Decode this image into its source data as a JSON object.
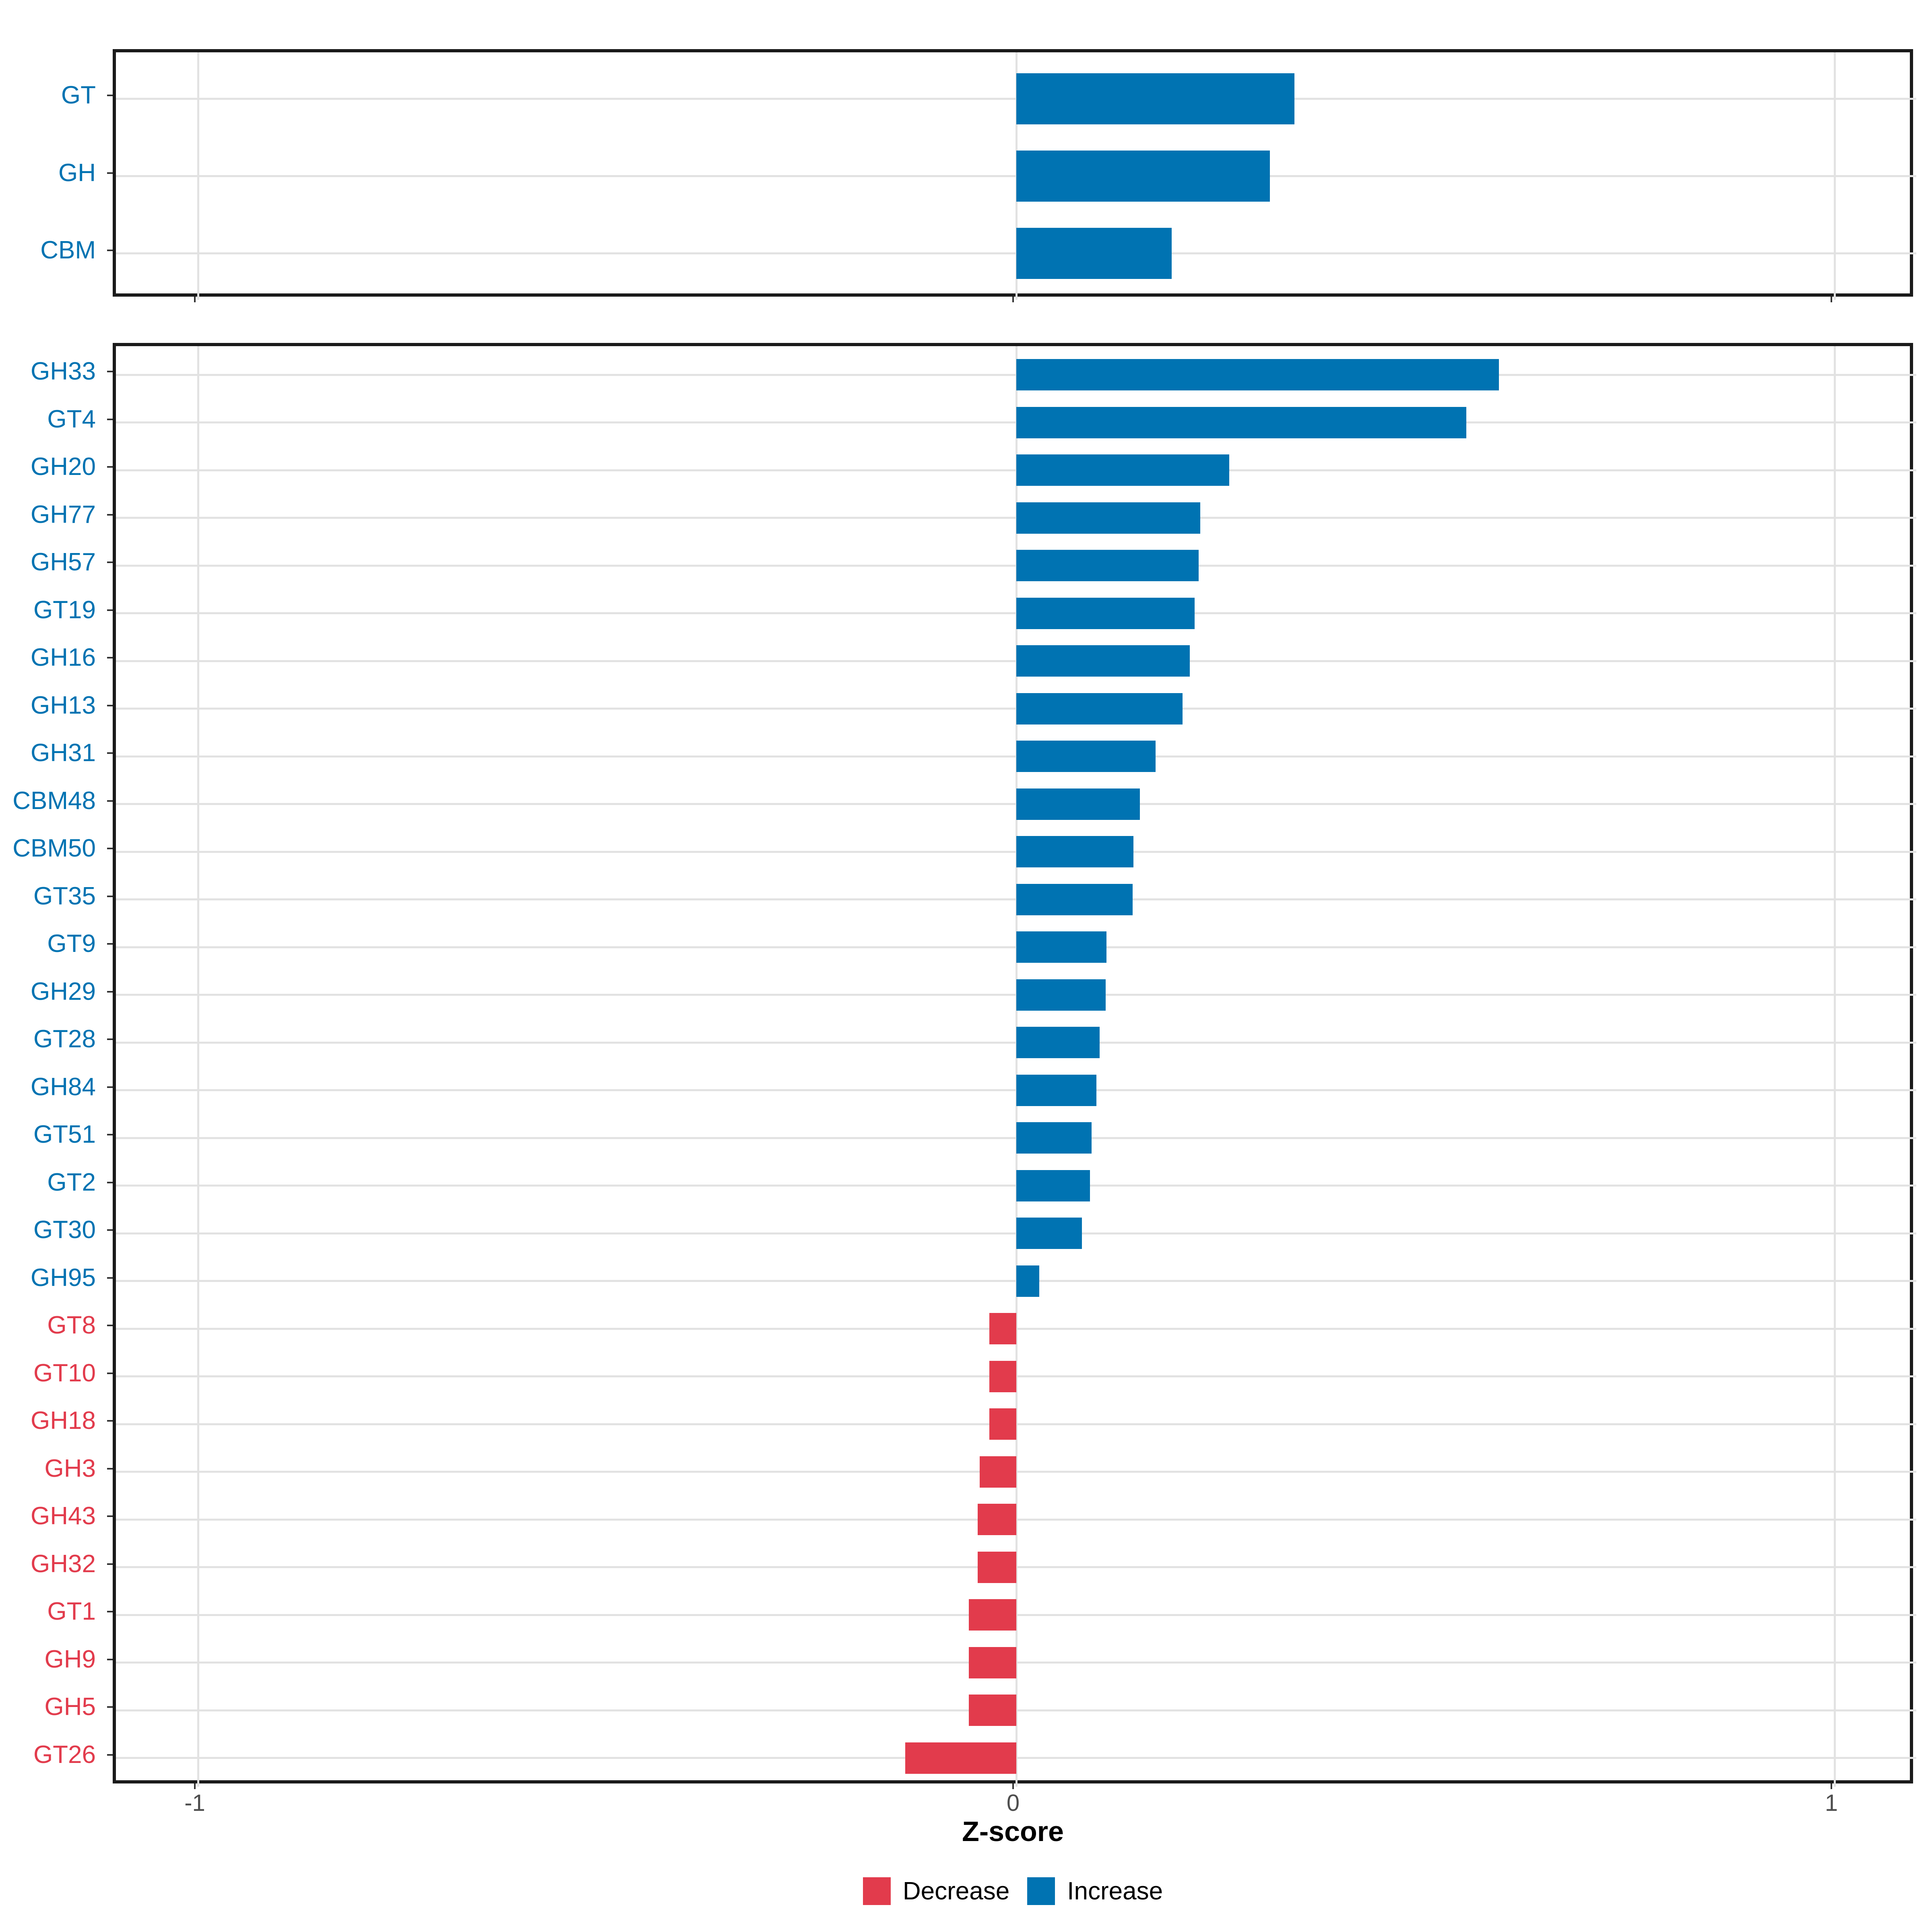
{
  "figure": {
    "background": "#FFFFFF"
  },
  "axis": {
    "label": "Z-score",
    "tick_labels": [
      "-1",
      "0",
      "1"
    ],
    "tick_values": [
      -1,
      0,
      1
    ],
    "range": [
      -1.1,
      1.1
    ]
  },
  "legend": {
    "items": [
      {
        "label": "Decrease",
        "color": "#E23B4C"
      },
      {
        "label": "Increase",
        "color": "#0073B2"
      }
    ]
  },
  "colors": {
    "increase": "#0073B2",
    "decrease": "#E23B4C",
    "grid": "#E2E2E2",
    "panel_border": "#1A1A1A",
    "tick": "#333333",
    "tick_label": "#4D4D4D",
    "text": "#000000"
  },
  "chart_data": [
    {
      "type": "bar",
      "orientation": "horizontal",
      "panel": "summary",
      "title": "",
      "xlabel": "Z-score",
      "ylabel": "",
      "xlim": [
        -1.1,
        1.1
      ],
      "grid": "major-only",
      "categories": [
        "GT",
        "GH",
        "CBM"
      ],
      "values": [
        0.34,
        0.31,
        0.19
      ],
      "directions": [
        "increase",
        "increase",
        "increase"
      ]
    },
    {
      "type": "bar",
      "orientation": "horizontal",
      "panel": "families",
      "title": "",
      "xlabel": "Z-score",
      "ylabel": "",
      "xlim": [
        -1.1,
        1.1
      ],
      "grid": "major-only",
      "categories": [
        "GH33",
        "GT4",
        "GH20",
        "GH77",
        "GH57",
        "GT19",
        "GH16",
        "GH13",
        "GH31",
        "CBM48",
        "CBM50",
        "GT35",
        "GT9",
        "GH29",
        "GT28",
        "GH84",
        "GT51",
        "GT2",
        "GT30",
        "GH95",
        "GT8",
        "GT10",
        "GH18",
        "GH3",
        "GH43",
        "GH32",
        "GT1",
        "GH9",
        "GH5",
        "GT26"
      ],
      "values": [
        0.59,
        0.55,
        0.26,
        0.225,
        0.223,
        0.218,
        0.212,
        0.203,
        0.17,
        0.151,
        0.143,
        0.142,
        0.11,
        0.109,
        0.102,
        0.098,
        0.092,
        0.09,
        0.08,
        0.028,
        -0.033,
        -0.033,
        -0.033,
        -0.045,
        -0.047,
        -0.047,
        -0.058,
        -0.058,
        -0.058,
        -0.136
      ],
      "directions": [
        "increase",
        "increase",
        "increase",
        "increase",
        "increase",
        "increase",
        "increase",
        "increase",
        "increase",
        "increase",
        "increase",
        "increase",
        "increase",
        "increase",
        "increase",
        "increase",
        "increase",
        "increase",
        "increase",
        "increase",
        "decrease",
        "decrease",
        "decrease",
        "decrease",
        "decrease",
        "decrease",
        "decrease",
        "decrease",
        "decrease",
        "decrease"
      ]
    }
  ]
}
